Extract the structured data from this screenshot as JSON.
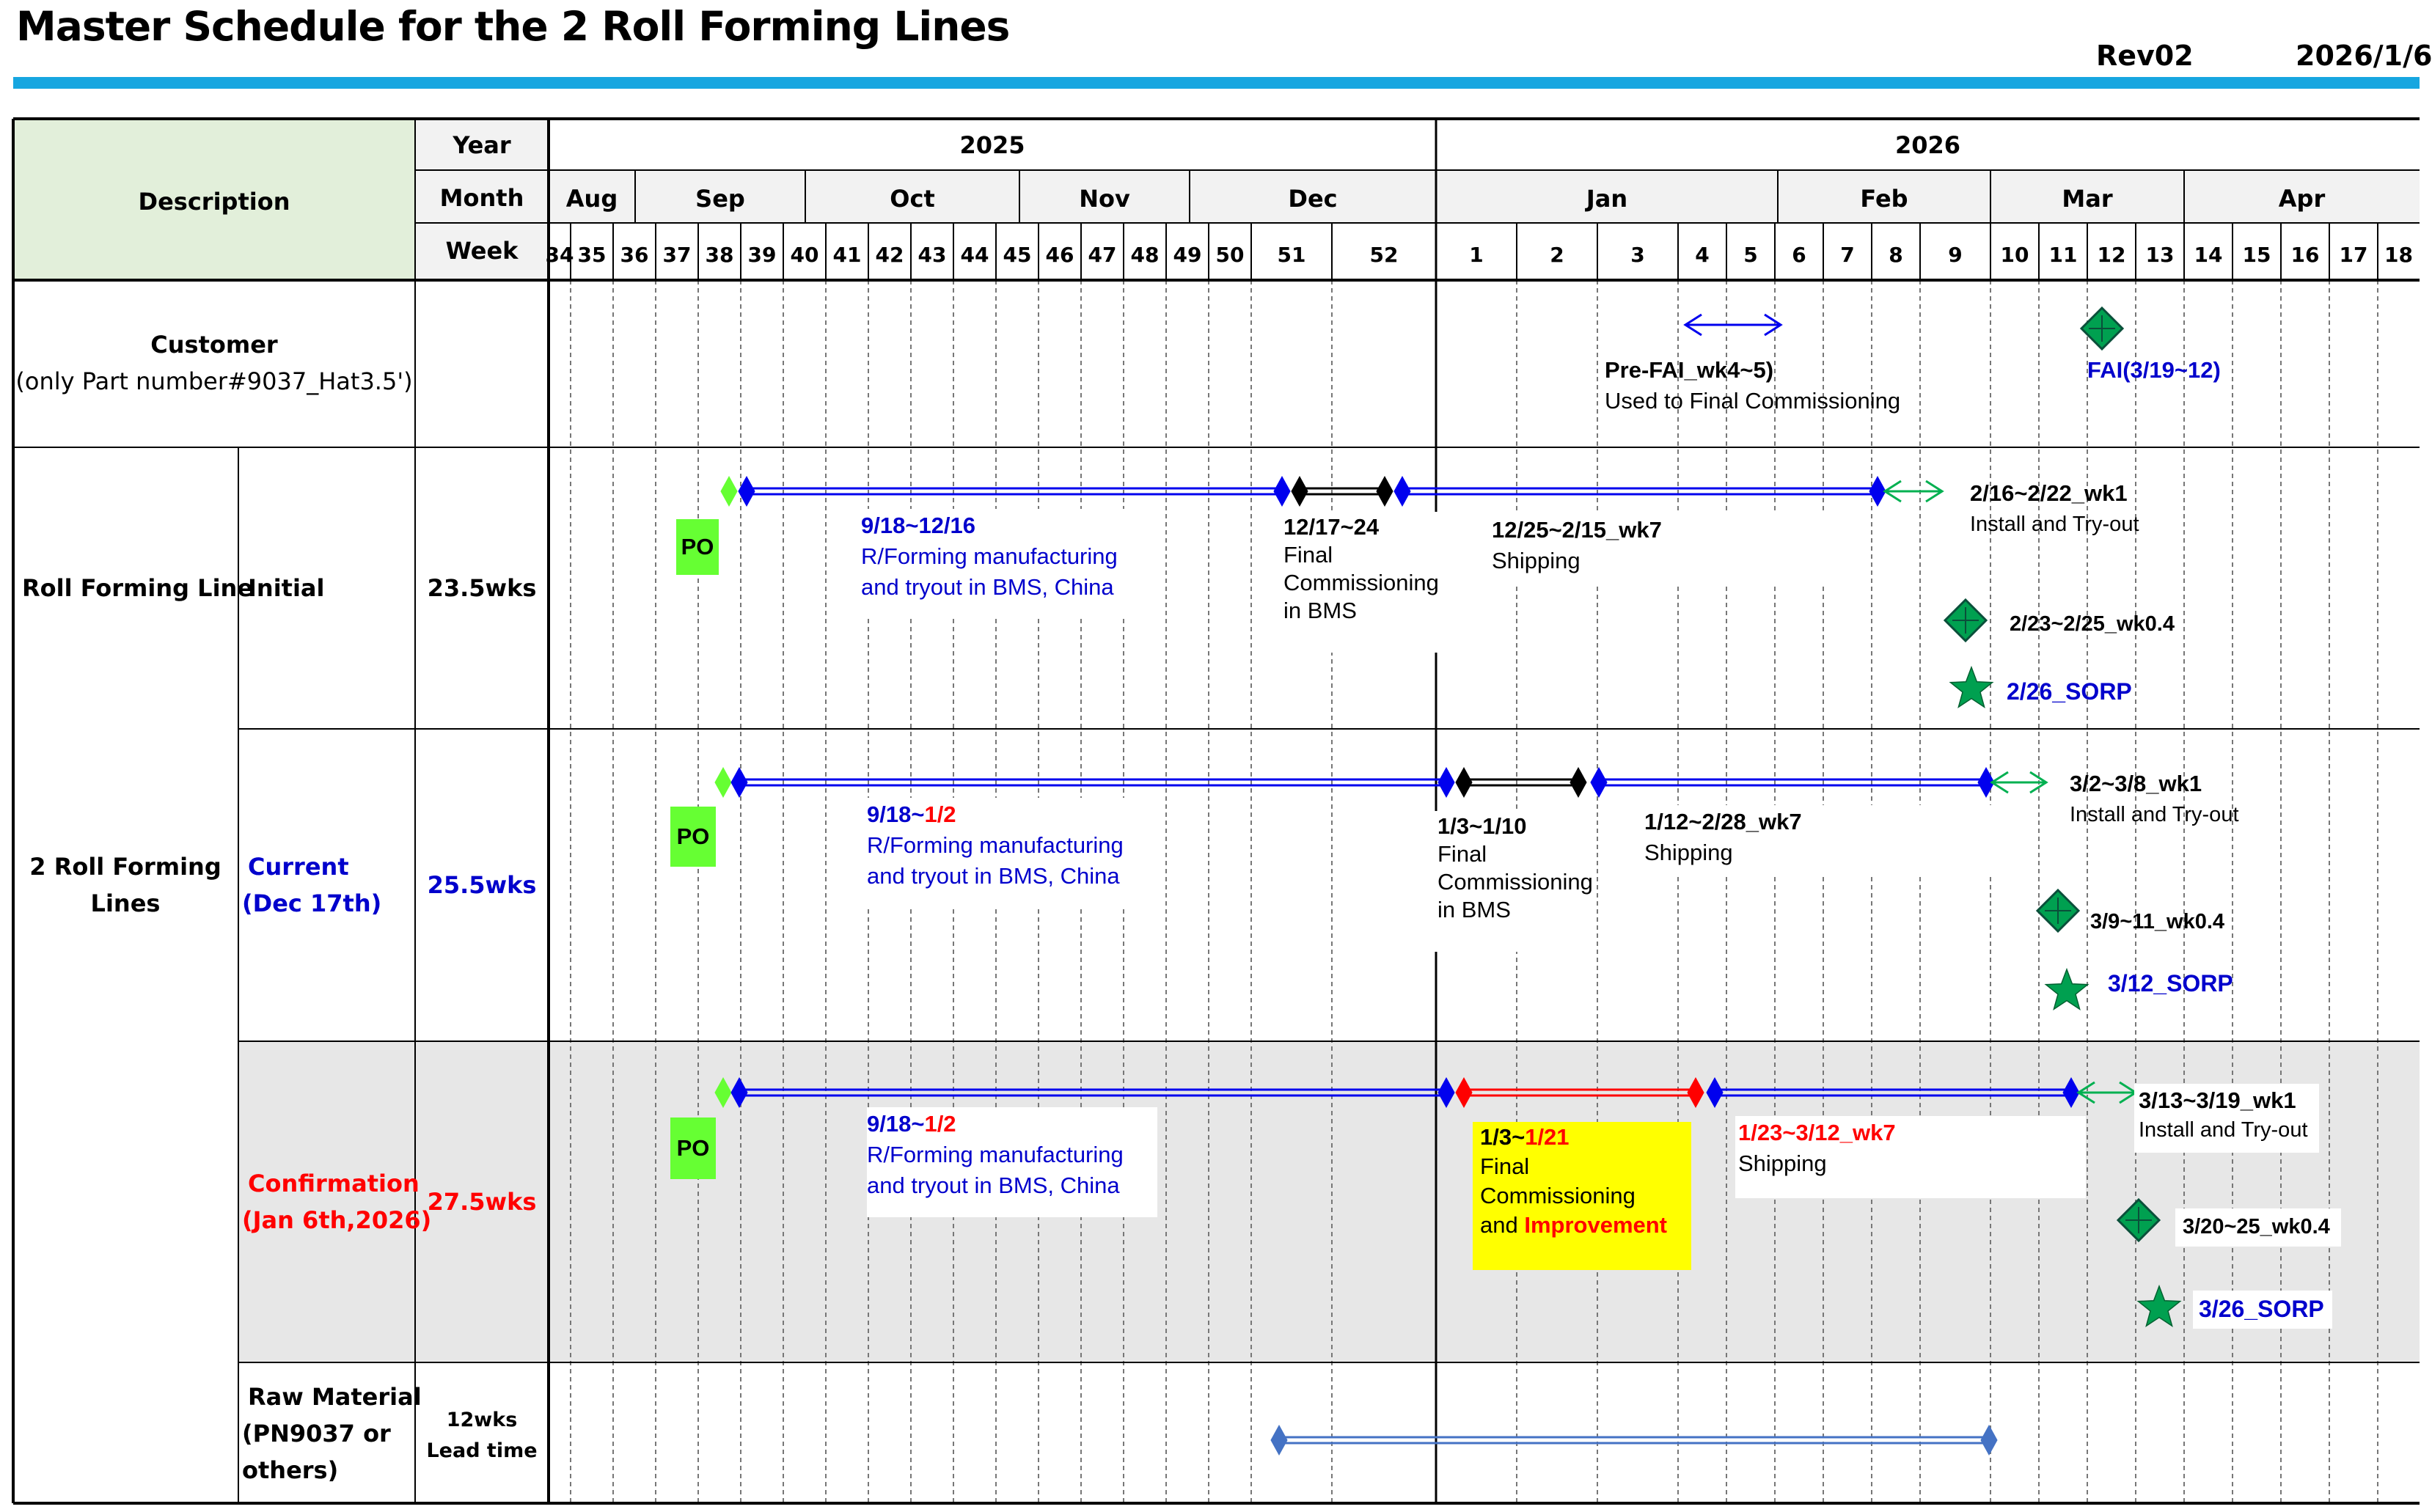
{
  "title": "Master Schedule for the 2 Roll Forming Lines",
  "revision": "Rev02",
  "date": "2026/1/6",
  "headers": {
    "description": "Description",
    "year": "Year",
    "month": "Month",
    "week": "Week"
  },
  "years": [
    "2025",
    "2026"
  ],
  "months": [
    "Aug",
    "Sep",
    "Oct",
    "Nov",
    "Dec",
    "Jan",
    "Feb",
    "Mar",
    "Apr"
  ],
  "weeks": [
    "34",
    "35",
    "36",
    "37",
    "38",
    "39",
    "40",
    "41",
    "42",
    "43",
    "44",
    "45",
    "46",
    "47",
    "48",
    "49",
    "50",
    "51",
    "52",
    "1",
    "2",
    "3",
    "4",
    "5",
    "6",
    "7",
    "8",
    "9",
    "10",
    "11",
    "12",
    "13",
    "14",
    "15",
    "16",
    "17",
    "18"
  ],
  "rows": {
    "customer": {
      "label": "Customer",
      "sub": "(only Part number#9037_Hat3.5')"
    },
    "roll_forming_line": {
      "label": "Roll Forming Line"
    },
    "two_lines": {
      "label_1": "2 Roll Forming",
      "label_2": "Lines"
    },
    "initial": {
      "label": "Initial",
      "duration": "23.5wks"
    },
    "current": {
      "label_1": "Current",
      "label_2": "(Dec 17th)",
      "duration": "25.5wks"
    },
    "confirmation": {
      "label_1": "Confirmation",
      "label_2": "(Jan 6th,2026)",
      "duration": "27.5wks"
    },
    "raw_material": {
      "label_1": "Raw Material",
      "label_2": "(PN9037 or",
      "label_3": "others)",
      "duration_1": "12wks",
      "duration_2": "Lead time"
    }
  },
  "annotations": {
    "customer": {
      "prefai_1": "Pre-FAI_wk4~5)",
      "prefai_2": "Used to Final Commissioning",
      "fai": "FAI(3/19~12)"
    },
    "initial": {
      "po": "PO",
      "mfg_date": "9/18~12/16",
      "mfg_1": "R/Forming manufacturing",
      "mfg_2": "and tryout in BMS, China",
      "fc_date": "12/17~24",
      "fc_1": "Final",
      "fc_2": "Commissioning",
      "fc_3": "in BMS",
      "ship_date": "12/25~2/15_wk7",
      "ship": "Shipping",
      "install_date": "2/16~2/22_wk1",
      "install": "Install and Try-out",
      "check": "2/23~2/25_wk0.4",
      "sorp": "2/26_SORP"
    },
    "current": {
      "po": "PO",
      "mfg_date_a": "9/18~",
      "mfg_date_b": "1/2",
      "mfg_1": "R/Forming manufacturing",
      "mfg_2": "and tryout in BMS, China",
      "fc_date": "1/3~1/10",
      "fc_1": "Final",
      "fc_2": "Commissioning",
      "fc_3": "in BMS",
      "ship_date": "1/12~2/28_wk7",
      "ship": "Shipping",
      "install_date": "3/2~3/8_wk1",
      "install": "Install and Try-out",
      "check": "3/9~11_wk0.4",
      "sorp": "3/12_SORP"
    },
    "confirmation": {
      "po": "PO",
      "mfg_date_a": "9/18~",
      "mfg_date_b": "1/2",
      "mfg_1": "R/Forming manufacturing",
      "mfg_2": "and tryout in BMS, China",
      "fc_date_a": "1/3~",
      "fc_date_b": "1/21",
      "fc_1": "Final",
      "fc_2": "Commissioning",
      "fc_3a": "and ",
      "fc_3b": "Improvement",
      "ship_date": "1/23~3/12_wk7",
      "ship": "Shipping",
      "install_date": "3/13~3/19_wk1",
      "install": "Install and Try-out",
      "check": "3/20~25_wk0.4",
      "sorp": "3/26_SORP"
    }
  },
  "colors": {
    "header_bar": "#16a6e0",
    "description_fill": "#e2efda",
    "header_fill": "#f2f2f2",
    "confirmation_fill": "#e7e7e7",
    "blue_bar": "#0000ee",
    "red_bar": "#ff0000",
    "green_arrow": "#00b050",
    "po_fill": "#66ff33",
    "highlight_yellow": "#ffff00",
    "star_green": "#00a050"
  }
}
